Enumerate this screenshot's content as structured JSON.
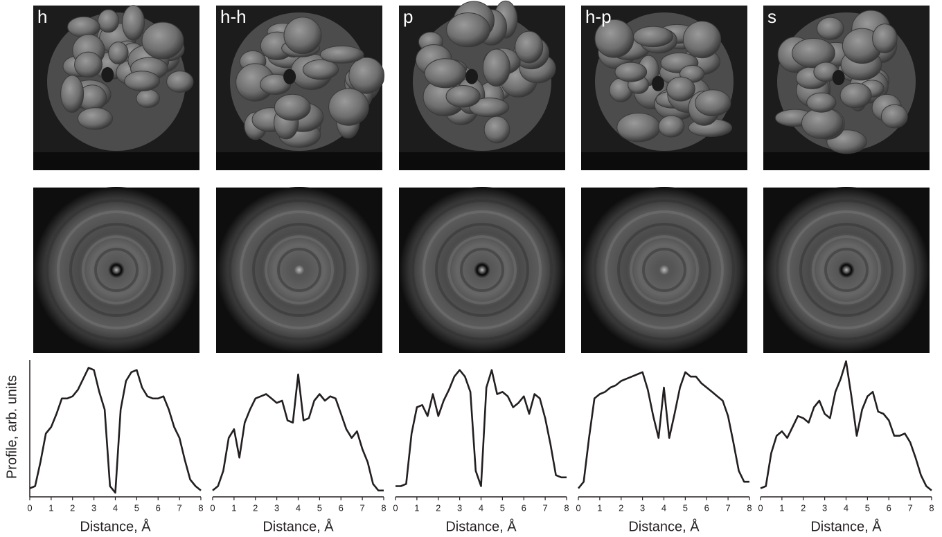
{
  "chart_data": [
    {
      "type": "line",
      "title": "h",
      "xlabel": "Distance, Å",
      "ylabel": "Profile, arb. units",
      "x": [
        0,
        0.25,
        0.5,
        0.75,
        1,
        1.25,
        1.5,
        1.75,
        2,
        2.25,
        2.5,
        2.75,
        3,
        3.25,
        3.5,
        3.75,
        4,
        4.25,
        4.5,
        4.75,
        5,
        5.25,
        5.5,
        5.75,
        6,
        6.25,
        6.5,
        6.75,
        7,
        7.25,
        7.5,
        7.75,
        8
      ],
      "values": [
        0.2,
        0.3,
        1.4,
        2.7,
        3.0,
        3.6,
        4.3,
        4.3,
        4.4,
        4.7,
        5.2,
        5.7,
        5.6,
        4.6,
        3.8,
        0.3,
        0.0,
        3.8,
        5.1,
        5.5,
        5.6,
        4.8,
        4.4,
        4.3,
        4.3,
        4.4,
        3.8,
        3.0,
        2.5,
        1.5,
        0.6,
        0.3,
        0.1
      ],
      "color": "#231f20",
      "xlim": [
        0,
        8
      ],
      "ylim": [
        0,
        6
      ],
      "xticks": [
        0,
        1,
        2,
        3,
        4,
        5,
        6,
        7,
        8
      ]
    },
    {
      "type": "line",
      "title": "h-h",
      "xlabel": "Distance, Å",
      "x": [
        0,
        0.25,
        0.5,
        0.75,
        1,
        1.25,
        1.5,
        1.75,
        2,
        2.25,
        2.5,
        2.75,
        3,
        3.25,
        3.5,
        3.75,
        4,
        4.25,
        4.5,
        4.75,
        5,
        5.25,
        5.5,
        5.75,
        6,
        6.25,
        6.5,
        6.75,
        7,
        7.25,
        7.5,
        7.75,
        8
      ],
      "values": [
        0.1,
        0.3,
        1.0,
        2.5,
        2.9,
        1.6,
        3.2,
        3.8,
        4.3,
        4.4,
        4.5,
        4.3,
        4.1,
        4.2,
        3.3,
        3.2,
        5.4,
        3.3,
        3.4,
        4.2,
        4.5,
        4.2,
        4.4,
        4.3,
        3.6,
        2.9,
        2.5,
        2.8,
        2.0,
        1.4,
        0.4,
        0.1,
        0.1
      ],
      "color": "#231f20",
      "xlim": [
        0,
        8
      ],
      "ylim": [
        0,
        6
      ],
      "xticks": [
        0,
        1,
        2,
        3,
        4,
        5,
        6,
        7,
        8
      ]
    },
    {
      "type": "line",
      "title": "p",
      "xlabel": "Distance, Å",
      "x": [
        0,
        0.25,
        0.5,
        0.75,
        1,
        1.25,
        1.5,
        1.75,
        2,
        2.25,
        2.5,
        2.75,
        3,
        3.25,
        3.5,
        3.75,
        4,
        4.25,
        4.5,
        4.75,
        5,
        5.25,
        5.5,
        5.75,
        6,
        6.25,
        6.5,
        6.75,
        7,
        7.25,
        7.5,
        7.75,
        8
      ],
      "values": [
        0.3,
        0.3,
        0.4,
        2.7,
        3.9,
        4.0,
        3.5,
        4.5,
        3.5,
        4.2,
        4.7,
        5.3,
        5.6,
        5.3,
        4.6,
        1.0,
        0.3,
        4.8,
        5.6,
        4.5,
        4.6,
        4.4,
        3.9,
        4.1,
        4.4,
        3.6,
        4.5,
        4.3,
        3.4,
        2.2,
        0.8,
        0.7,
        0.7
      ],
      "color": "#231f20",
      "xlim": [
        0,
        8
      ],
      "ylim": [
        0,
        6
      ],
      "xticks": [
        0,
        1,
        2,
        3,
        4,
        5,
        6,
        7,
        8
      ]
    },
    {
      "type": "line",
      "title": "h-p",
      "xlabel": "Distance, Å",
      "x": [
        0,
        0.25,
        0.5,
        0.75,
        1,
        1.25,
        1.5,
        1.75,
        2,
        2.25,
        2.5,
        2.75,
        3,
        3.25,
        3.5,
        3.75,
        4,
        4.25,
        4.5,
        4.75,
        5,
        5.25,
        5.5,
        5.75,
        6,
        6.25,
        6.5,
        6.75,
        7,
        7.25,
        7.5,
        7.75,
        8
      ],
      "values": [
        0.2,
        0.5,
        2.5,
        4.3,
        4.5,
        4.6,
        4.8,
        4.9,
        5.1,
        5.2,
        5.3,
        5.4,
        5.5,
        4.7,
        3.5,
        2.5,
        4.8,
        2.5,
        3.6,
        4.8,
        5.5,
        5.3,
        5.3,
        5.0,
        4.8,
        4.6,
        4.4,
        4.2,
        3.5,
        2.3,
        1.0,
        0.5,
        0.5
      ],
      "color": "#231f20",
      "xlim": [
        0,
        8
      ],
      "ylim": [
        0,
        6
      ],
      "xticks": [
        0,
        1,
        2,
        3,
        4,
        5,
        6,
        7,
        8
      ]
    },
    {
      "type": "line",
      "title": "s",
      "xlabel": "Distance, Å",
      "x": [
        0,
        0.25,
        0.5,
        0.75,
        1,
        1.25,
        1.5,
        1.75,
        2,
        2.25,
        2.5,
        2.75,
        3,
        3.25,
        3.5,
        3.75,
        4,
        4.25,
        4.5,
        4.75,
        5,
        5.25,
        5.5,
        5.75,
        6,
        6.25,
        6.5,
        6.75,
        7,
        7.25,
        7.5,
        7.75,
        8
      ],
      "values": [
        0.2,
        0.3,
        1.8,
        2.6,
        2.8,
        2.5,
        3.0,
        3.5,
        3.4,
        3.2,
        3.9,
        4.2,
        3.6,
        3.4,
        4.6,
        5.2,
        6.0,
        4.4,
        2.6,
        3.8,
        4.4,
        4.6,
        3.7,
        3.6,
        3.3,
        2.6,
        2.6,
        2.7,
        2.3,
        1.6,
        0.8,
        0.3,
        0.1
      ],
      "color": "#231f20",
      "xlim": [
        0,
        8
      ],
      "ylim": [
        0,
        6
      ],
      "xticks": [
        0,
        1,
        2,
        3,
        4,
        5,
        6,
        7,
        8
      ]
    }
  ]
}
